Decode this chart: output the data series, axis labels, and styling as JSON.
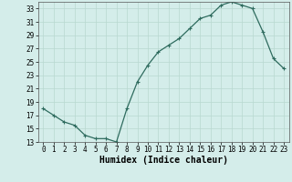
{
  "x": [
    0,
    1,
    2,
    3,
    4,
    5,
    6,
    7,
    8,
    9,
    10,
    11,
    12,
    13,
    14,
    15,
    16,
    17,
    18,
    19,
    20,
    21,
    22,
    23
  ],
  "y": [
    18,
    17,
    16,
    15.5,
    14,
    13.5,
    13.5,
    13,
    18,
    22,
    24.5,
    26.5,
    27.5,
    28.5,
    30,
    31.5,
    32,
    33.5,
    34,
    33.5,
    33,
    29.5,
    25.5,
    24
  ],
  "line_color": "#2e6b5e",
  "marker": "+",
  "marker_size": 3,
  "marker_lw": 0.8,
  "xlabel": "Humidex (Indice chaleur)",
  "ylim": [
    13,
    34
  ],
  "yticks": [
    13,
    15,
    17,
    19,
    21,
    23,
    25,
    27,
    29,
    31,
    33
  ],
  "xticks": [
    0,
    1,
    2,
    3,
    4,
    5,
    6,
    7,
    8,
    9,
    10,
    11,
    12,
    13,
    14,
    15,
    16,
    17,
    18,
    19,
    20,
    21,
    22,
    23
  ],
  "grid_color": "#b8d8d0",
  "bg_color": "#d4edea",
  "fig_bg_color": "#d4edea",
  "tick_fontsize": 5.5,
  "xlabel_fontsize": 7,
  "line_width": 0.9
}
